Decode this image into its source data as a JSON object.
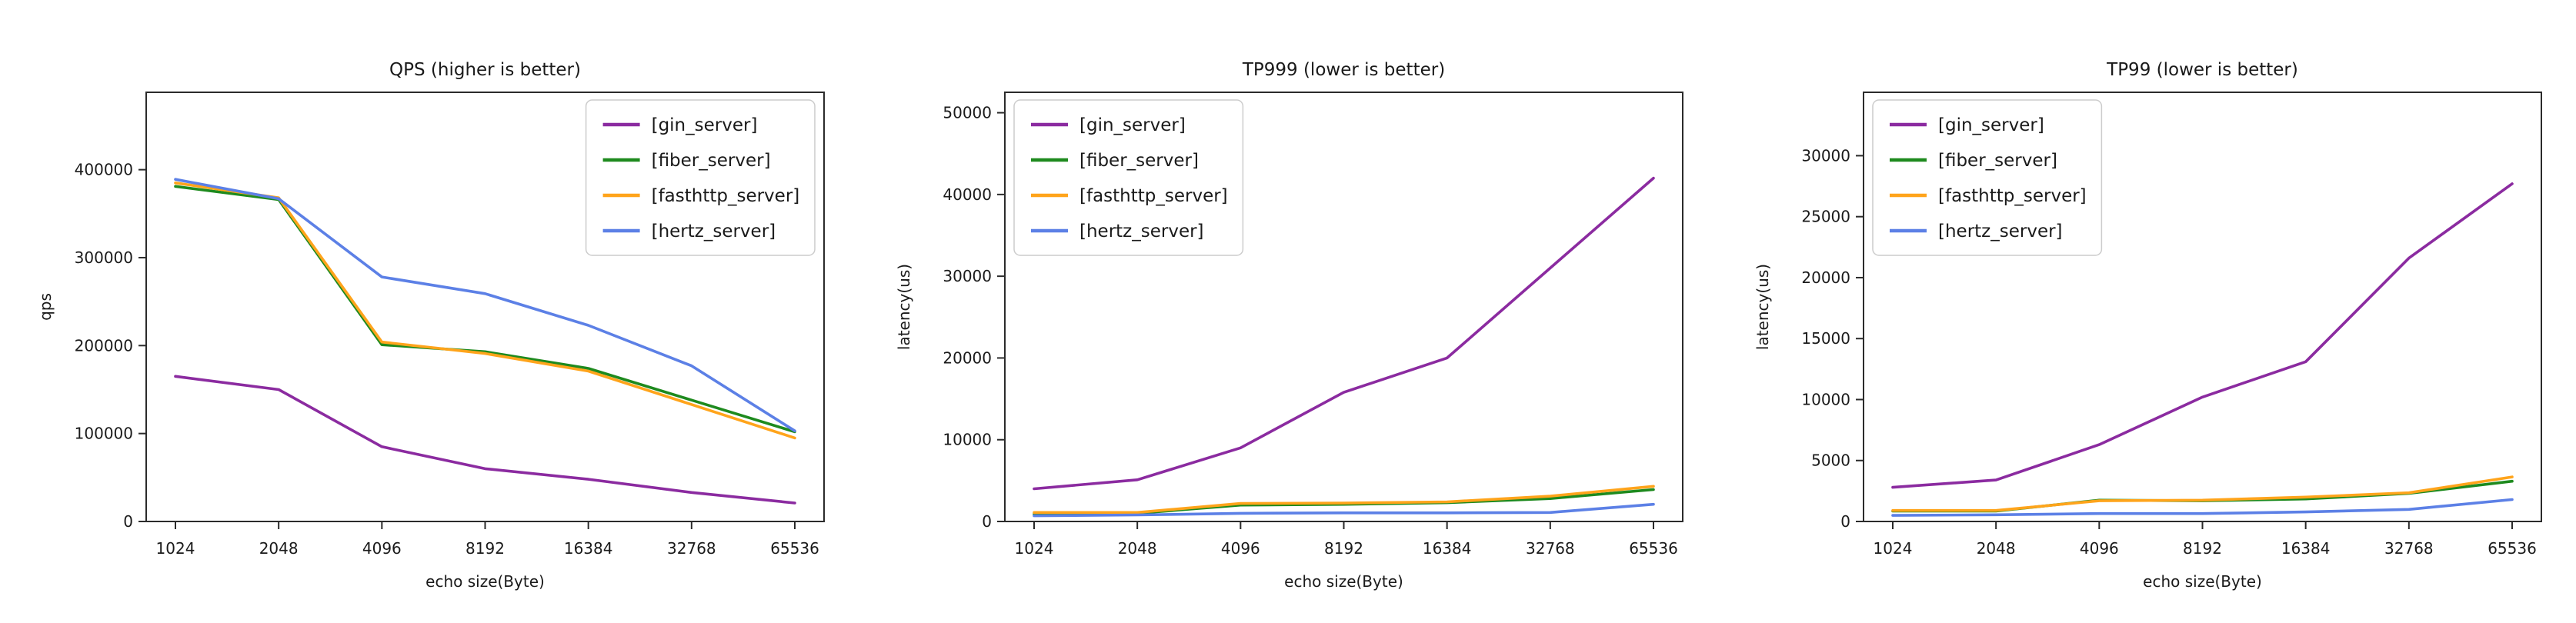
{
  "page": {
    "background": "#ffffff"
  },
  "chart_data": [
    {
      "type": "line",
      "title": "QPS (higher is better)",
      "xlabel": "echo size(Byte)",
      "ylabel": "qps",
      "categories": [
        "1024",
        "2048",
        "4096",
        "8192",
        "16384",
        "32768",
        "65536"
      ],
      "yticks": [
        0,
        100000,
        200000,
        300000,
        400000
      ],
      "ylim": [
        0,
        488000
      ],
      "grid": false,
      "legend_position": "top-right",
      "series": [
        {
          "name": "[gin_server]",
          "color": "#8B2BA0",
          "values": [
            165000,
            150000,
            85000,
            60000,
            48000,
            33000,
            21000
          ]
        },
        {
          "name": "[fiber_server]",
          "color": "#1E8A1E",
          "values": [
            381000,
            366000,
            201000,
            193000,
            174000,
            138000,
            102000
          ]
        },
        {
          "name": "[fasthttp_server]",
          "color": "#FFA41B",
          "values": [
            385000,
            368000,
            204000,
            191000,
            171000,
            133000,
            95000
          ]
        },
        {
          "name": "[hertz_server]",
          "color": "#5C80E6",
          "values": [
            389000,
            367000,
            278000,
            259000,
            223000,
            177000,
            103000
          ]
        }
      ]
    },
    {
      "type": "line",
      "title": "TP999 (lower is better)",
      "xlabel": "echo size(Byte)",
      "ylabel": "latency(us)",
      "categories": [
        "1024",
        "2048",
        "4096",
        "8192",
        "16384",
        "32768",
        "65536"
      ],
      "yticks": [
        0,
        10000,
        20000,
        30000,
        40000,
        50000
      ],
      "ylim": [
        0,
        52500
      ],
      "grid": false,
      "legend_position": "top-left",
      "series": [
        {
          "name": "[gin_server]",
          "color": "#8B2BA0",
          "values": [
            4000,
            5100,
            9000,
            15800,
            20000,
            31000,
            42000
          ]
        },
        {
          "name": "[fiber_server]",
          "color": "#1E8A1E",
          "values": [
            900,
            1000,
            2000,
            2100,
            2300,
            2800,
            3900
          ]
        },
        {
          "name": "[fasthttp_server]",
          "color": "#FFA41B",
          "values": [
            1100,
            1100,
            2200,
            2250,
            2400,
            3100,
            4300
          ]
        },
        {
          "name": "[hertz_server]",
          "color": "#5C80E6",
          "values": [
            700,
            800,
            1000,
            1050,
            1050,
            1100,
            2100
          ]
        }
      ]
    },
    {
      "type": "line",
      "title": "TP99 (lower is better)",
      "xlabel": "echo size(Byte)",
      "ylabel": "latency(us)",
      "categories": [
        "1024",
        "2048",
        "4096",
        "8192",
        "16384",
        "32768",
        "65536"
      ],
      "yticks": [
        0,
        5000,
        10000,
        15000,
        20000,
        25000,
        30000
      ],
      "ylim": [
        0,
        35200
      ],
      "grid": false,
      "legend_position": "top-left",
      "series": [
        {
          "name": "[gin_server]",
          "color": "#8B2BA0",
          "values": [
            2800,
            3400,
            6300,
            10200,
            13100,
            21600,
            27700
          ]
        },
        {
          "name": "[fiber_server]",
          "color": "#1E8A1E",
          "values": [
            850,
            850,
            1750,
            1700,
            1850,
            2300,
            3300
          ]
        },
        {
          "name": "[fasthttp_server]",
          "color": "#FFA41B",
          "values": [
            900,
            900,
            1700,
            1750,
            2000,
            2350,
            3650
          ]
        },
        {
          "name": "[hertz_server]",
          "color": "#5C80E6",
          "values": [
            500,
            550,
            650,
            650,
            780,
            990,
            1800
          ]
        }
      ]
    }
  ]
}
